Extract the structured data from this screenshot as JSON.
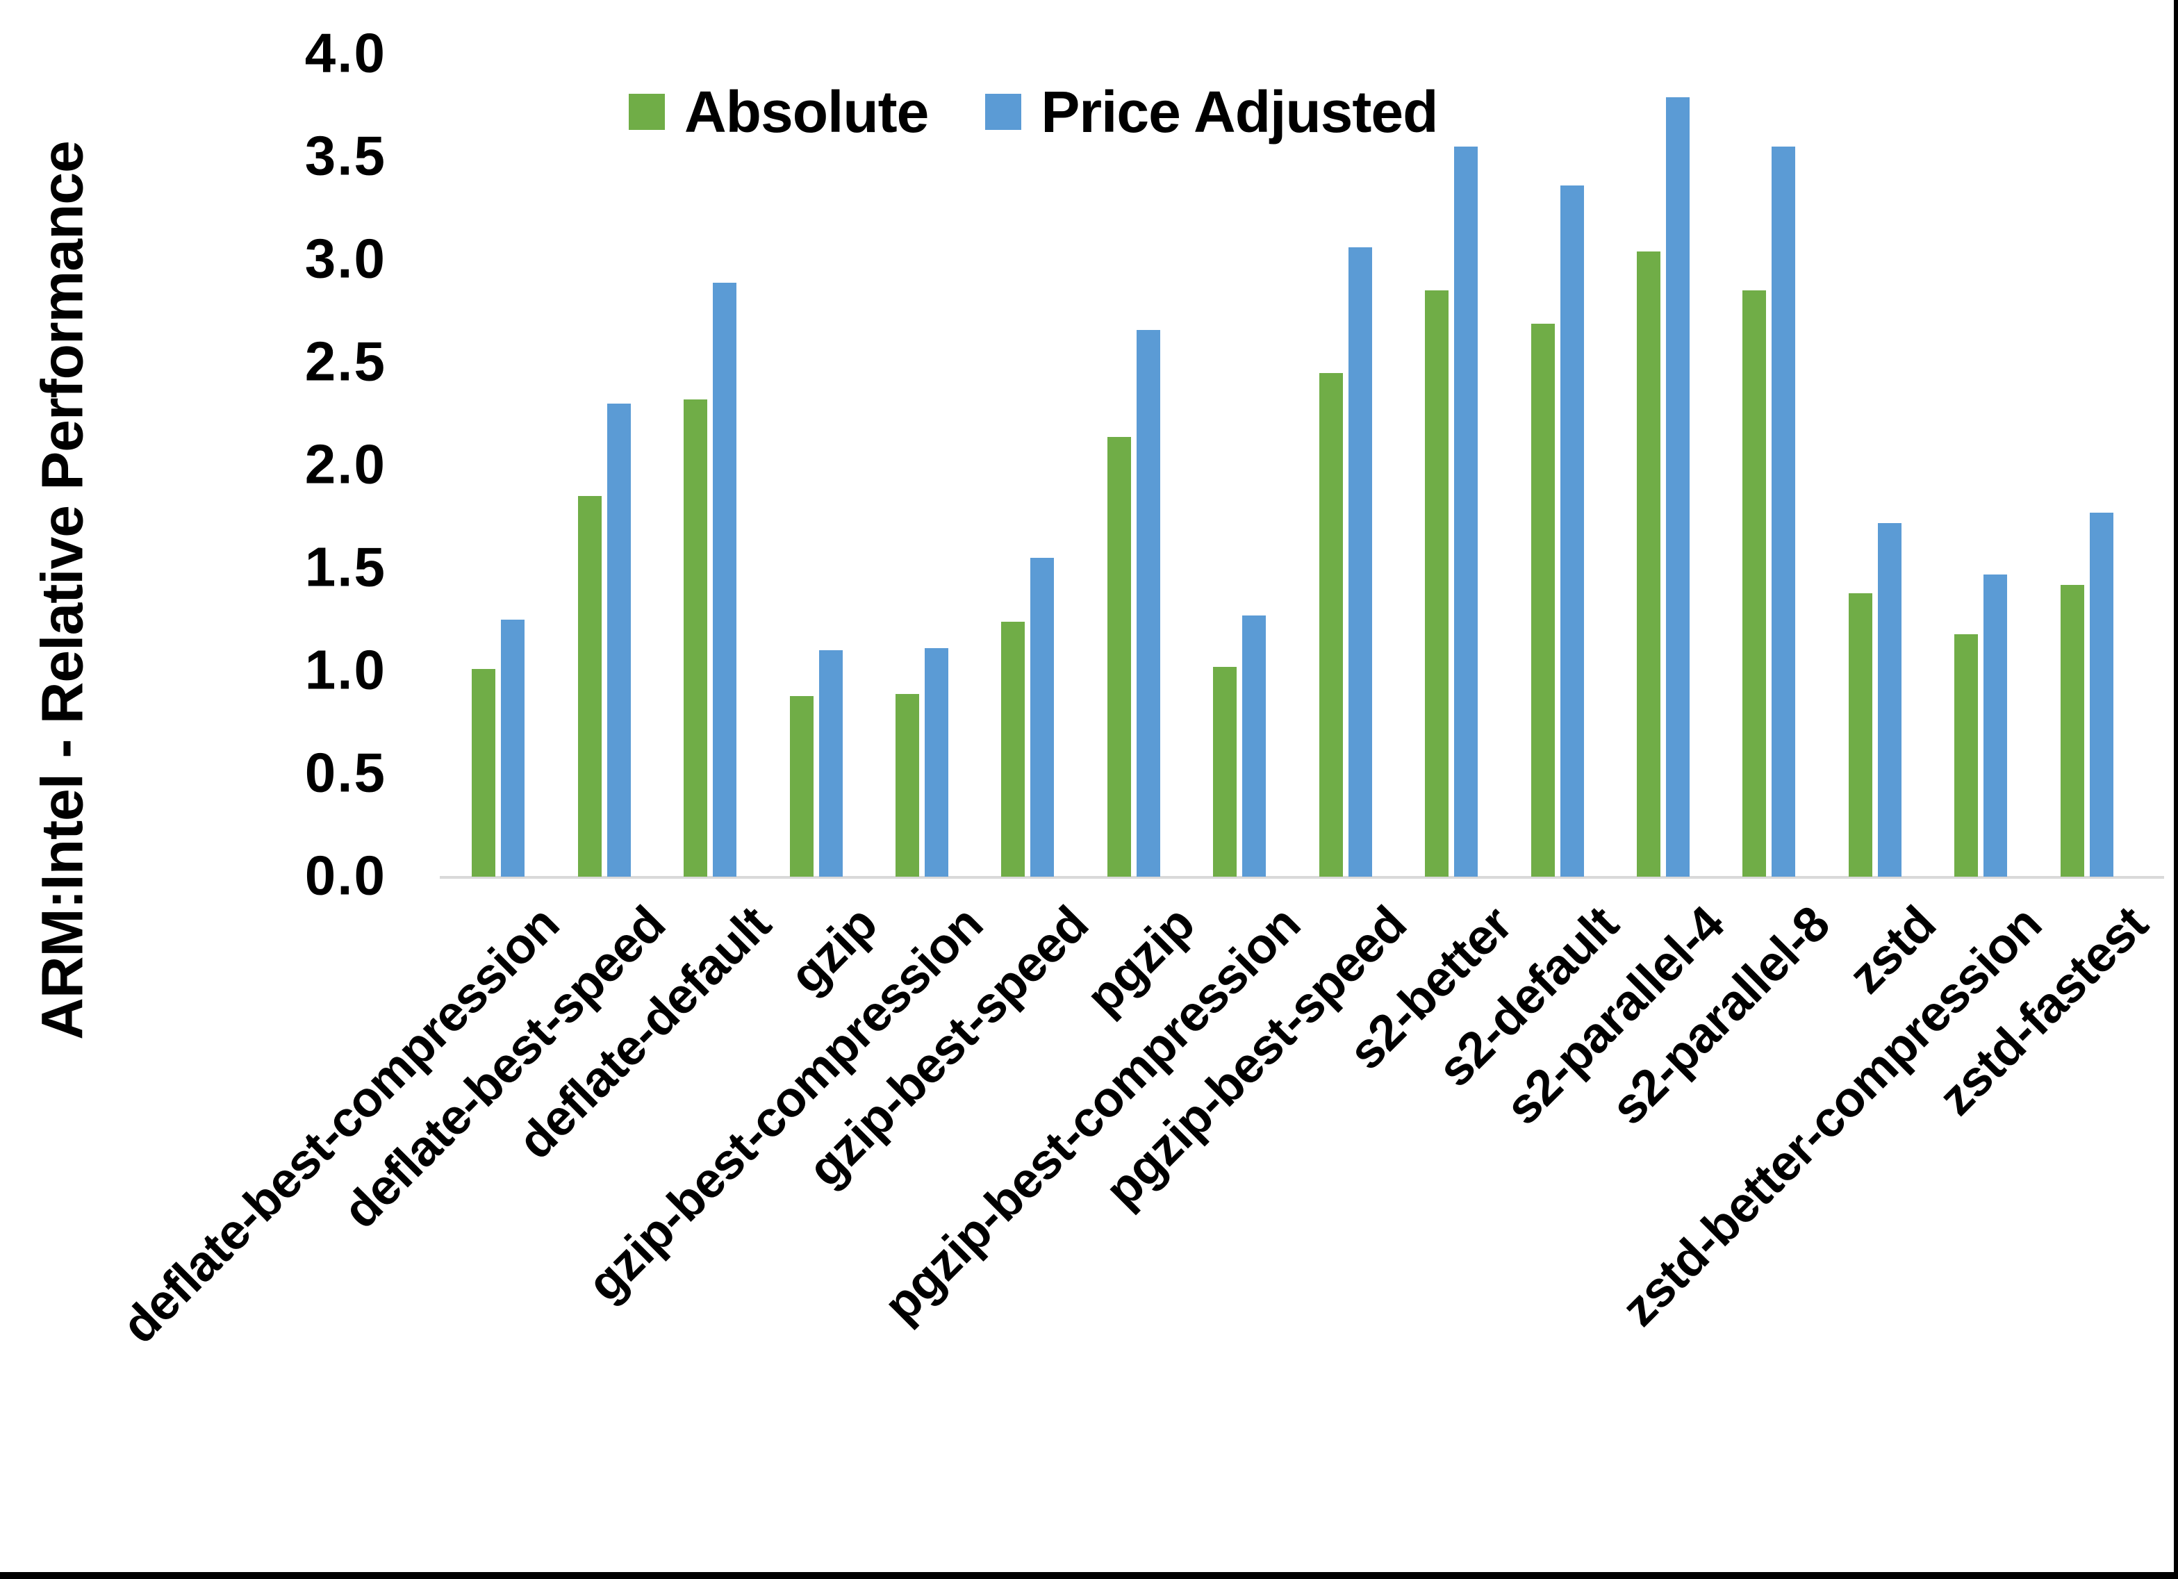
{
  "chart_data": {
    "type": "bar",
    "title": "",
    "ylabel": "ARM:Intel - Relative Performance",
    "xlabel": "",
    "ylim": [
      0.0,
      4.0
    ],
    "ytick_step": 0.5,
    "yticks": [
      "0.0",
      "0.5",
      "1.0",
      "1.5",
      "2.0",
      "2.5",
      "3.0",
      "3.5",
      "4.0"
    ],
    "grid": "off",
    "legend_position": "top-center",
    "axis_line_color": "#d9d9d9",
    "text_color": "#000000",
    "categories": [
      "deflate-best-compression",
      "deflate-best-speed",
      "deflate-default",
      "gzip",
      "gzip-best-compression",
      "gzip-best-speed",
      "pgzip",
      "pgzip-best-compression",
      "pgzip-best-speed",
      "s2-better",
      "s2-default",
      "s2-parallel-4",
      "s2-parallel-8",
      "zstd",
      "zstd-better-compression",
      "zstd-fastest"
    ],
    "series": [
      {
        "name": "Absolute",
        "color": "#70AD47",
        "values": [
          1.01,
          1.85,
          2.32,
          0.88,
          0.89,
          1.24,
          2.14,
          1.02,
          2.45,
          2.85,
          2.69,
          3.04,
          2.85,
          1.38,
          1.18,
          1.42
        ]
      },
      {
        "name": "Price Adjusted",
        "color": "#5B9BD5",
        "values": [
          1.25,
          2.3,
          2.89,
          1.1,
          1.11,
          1.55,
          2.66,
          1.27,
          3.06,
          3.55,
          3.36,
          3.79,
          3.55,
          1.72,
          1.47,
          1.77
        ]
      }
    ],
    "frame": {
      "right_border_color": "#000000",
      "bottom_border_color": "#000000"
    }
  }
}
